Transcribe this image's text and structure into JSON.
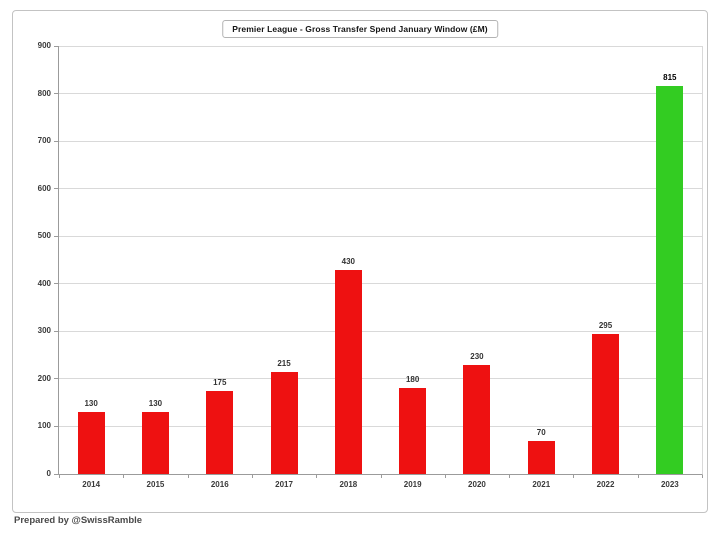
{
  "chart_data": {
    "type": "bar",
    "title": "Premier League - Gross Transfer Spend January Window (£M)",
    "categories": [
      "2014",
      "2015",
      "2016",
      "2017",
      "2018",
      "2019",
      "2020",
      "2021",
      "2022",
      "2023"
    ],
    "values": [
      130,
      130,
      175,
      215,
      430,
      180,
      230,
      70,
      295,
      815
    ],
    "data_labels": [
      "130",
      "130",
      "175",
      "215",
      "430",
      "180",
      "230",
      "70",
      "295",
      "815"
    ],
    "highlight_index": 9,
    "ylim": [
      0,
      900
    ],
    "yticks": [
      0,
      100,
      200,
      300,
      400,
      500,
      600,
      700,
      800,
      900
    ],
    "grid": true,
    "legend_position": "none",
    "xlabel": "",
    "ylabel": ""
  },
  "colors": {
    "bar_default": "#ee1111",
    "bar_highlight": "#33cc22",
    "gridline": "#d9d9d9",
    "axis": "#9b9b9b",
    "tick_label": "#3a3a3a",
    "value_label": "#333333",
    "value_label_highlight": "#000000"
  },
  "footer": {
    "credit": "Prepared by @SwissRamble"
  }
}
